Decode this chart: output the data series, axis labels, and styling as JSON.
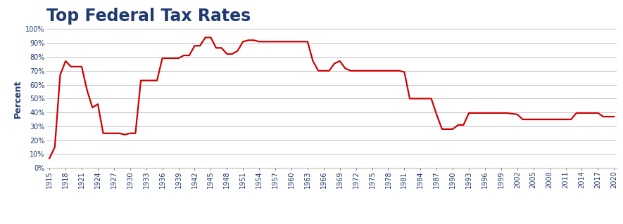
{
  "title": "Top Federal Tax Rates",
  "title_color": "#1F3A6E",
  "title_fontsize": 17,
  "ylabel": "Percent",
  "ylabel_color": "#1F3A6E",
  "ylabel_fontsize": 9,
  "line_color": "#CC0000",
  "line_width": 1.6,
  "background_color": "#FFFFFF",
  "grid_color": "#BBBBBB",
  "tick_color": "#1F3A6E",
  "tick_fontsize": 7,
  "ylim": [
    0,
    100
  ],
  "yticks": [
    0,
    10,
    20,
    30,
    40,
    50,
    60,
    70,
    80,
    90,
    100
  ],
  "data": [
    [
      1915,
      7
    ],
    [
      1916,
      15
    ],
    [
      1917,
      67
    ],
    [
      1918,
      77
    ],
    [
      1919,
      73
    ],
    [
      1920,
      73
    ],
    [
      1921,
      73
    ],
    [
      1922,
      56
    ],
    [
      1923,
      43.5
    ],
    [
      1924,
      46
    ],
    [
      1925,
      25
    ],
    [
      1926,
      25
    ],
    [
      1927,
      25
    ],
    [
      1928,
      25
    ],
    [
      1929,
      24
    ],
    [
      1930,
      25
    ],
    [
      1931,
      25
    ],
    [
      1932,
      63
    ],
    [
      1933,
      63
    ],
    [
      1934,
      63
    ],
    [
      1935,
      63
    ],
    [
      1936,
      79
    ],
    [
      1937,
      79
    ],
    [
      1938,
      79
    ],
    [
      1939,
      79
    ],
    [
      1940,
      81.1
    ],
    [
      1941,
      81
    ],
    [
      1942,
      88
    ],
    [
      1943,
      88
    ],
    [
      1944,
      94
    ],
    [
      1945,
      94
    ],
    [
      1946,
      86.45
    ],
    [
      1947,
      86.45
    ],
    [
      1948,
      82.13
    ],
    [
      1949,
      82.13
    ],
    [
      1950,
      84.36
    ],
    [
      1951,
      91
    ],
    [
      1952,
      92
    ],
    [
      1953,
      92
    ],
    [
      1954,
      91
    ],
    [
      1955,
      91
    ],
    [
      1956,
      91
    ],
    [
      1957,
      91
    ],
    [
      1958,
      91
    ],
    [
      1959,
      91
    ],
    [
      1960,
      91
    ],
    [
      1961,
      91
    ],
    [
      1962,
      91
    ],
    [
      1963,
      91
    ],
    [
      1964,
      77
    ],
    [
      1965,
      70
    ],
    [
      1966,
      70
    ],
    [
      1967,
      70
    ],
    [
      1968,
      75.25
    ],
    [
      1969,
      77
    ],
    [
      1970,
      71.75
    ],
    [
      1971,
      70
    ],
    [
      1972,
      70
    ],
    [
      1973,
      70
    ],
    [
      1974,
      70
    ],
    [
      1975,
      70
    ],
    [
      1976,
      70
    ],
    [
      1977,
      70
    ],
    [
      1978,
      70
    ],
    [
      1979,
      70
    ],
    [
      1980,
      70
    ],
    [
      1981,
      69.125
    ],
    [
      1982,
      50
    ],
    [
      1983,
      50
    ],
    [
      1984,
      50
    ],
    [
      1985,
      50
    ],
    [
      1986,
      50
    ],
    [
      1987,
      38.5
    ],
    [
      1988,
      28
    ],
    [
      1989,
      28
    ],
    [
      1990,
      28
    ],
    [
      1991,
      31
    ],
    [
      1992,
      31
    ],
    [
      1993,
      39.6
    ],
    [
      1994,
      39.6
    ],
    [
      1995,
      39.6
    ],
    [
      1996,
      39.6
    ],
    [
      1997,
      39.6
    ],
    [
      1998,
      39.6
    ],
    [
      1999,
      39.6
    ],
    [
      2000,
      39.6
    ],
    [
      2001,
      39.1
    ],
    [
      2002,
      38.6
    ],
    [
      2003,
      35
    ],
    [
      2004,
      35
    ],
    [
      2005,
      35
    ],
    [
      2006,
      35
    ],
    [
      2007,
      35
    ],
    [
      2008,
      35
    ],
    [
      2009,
      35
    ],
    [
      2010,
      35
    ],
    [
      2011,
      35
    ],
    [
      2012,
      35
    ],
    [
      2013,
      39.6
    ],
    [
      2014,
      39.6
    ],
    [
      2015,
      39.6
    ],
    [
      2016,
      39.6
    ],
    [
      2017,
      39.6
    ],
    [
      2018,
      37
    ],
    [
      2019,
      37
    ],
    [
      2020,
      37
    ]
  ],
  "xtick_years": [
    1915,
    1918,
    1921,
    1924,
    1927,
    1930,
    1933,
    1936,
    1939,
    1942,
    1945,
    1948,
    1951,
    1954,
    1957,
    1960,
    1963,
    1966,
    1969,
    1972,
    1975,
    1978,
    1981,
    1984,
    1987,
    1990,
    1993,
    1996,
    1999,
    2002,
    2005,
    2008,
    2011,
    2014,
    2017,
    2020
  ],
  "xlim": [
    1914.5,
    2020.5
  ]
}
